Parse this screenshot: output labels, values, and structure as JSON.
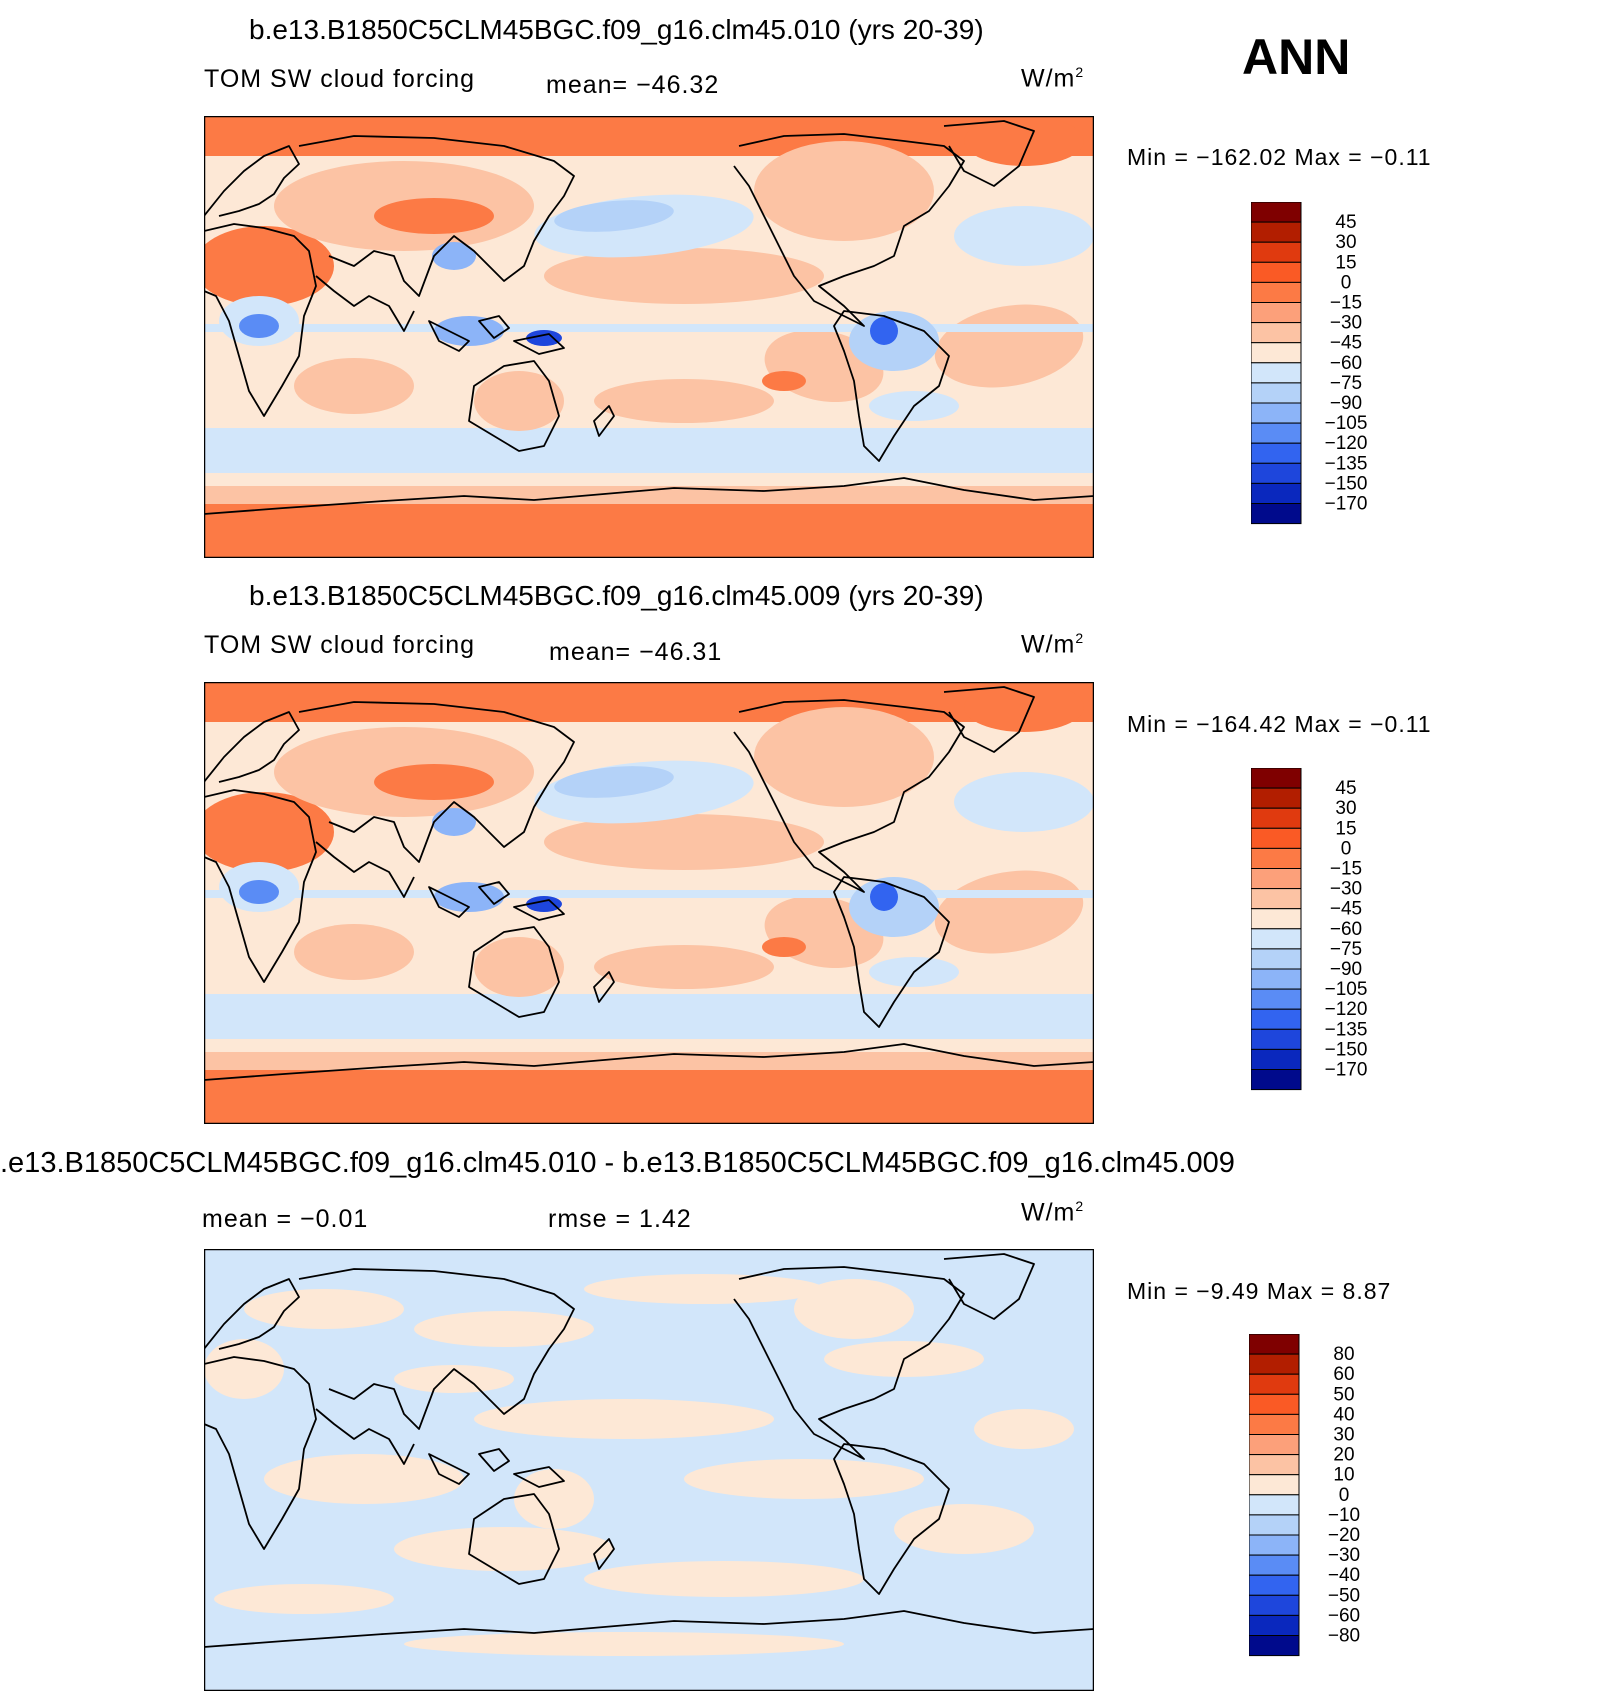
{
  "season": "ANN",
  "panels": [
    {
      "title": "b.e13.B1850C5CLM45BGC.f09_g16.clm45.010 (yrs 20-39)",
      "variable": "TOM SW cloud forcing",
      "stat": "mean= −46.32",
      "units": "W/m",
      "units_exp": "2",
      "minmax": "Min = −162.02 Max =  −0.11"
    },
    {
      "title": "b.e13.B1850C5CLM45BGC.f09_g16.clm45.009 (yrs 20-39)",
      "variable": "TOM SW cloud forcing",
      "stat": "mean= −46.31",
      "units": "W/m",
      "units_exp": "2",
      "minmax": "Min = −164.42 Max =  −0.11"
    },
    {
      "title": ".e13.B1850C5CLM45BGC.f09_g16.clm45.010 - b.e13.B1850C5CLM45BGC.f09_g16.clm45.009",
      "stat_mean": "mean =  −0.01",
      "stat_rmse": "rmse =   1.42",
      "units": "W/m",
      "units_exp": "2",
      "minmax": "Min =  −9.49 Max =   8.87"
    }
  ],
  "colors": {
    "scale": [
      "#7f0000",
      "#b21e00",
      "#e03a0f",
      "#fa5a25",
      "#fc7a45",
      "#fca07a",
      "#fcc3a4",
      "#fde8d6",
      "#d2e6fa",
      "#b4d2f8",
      "#8cb4f8",
      "#5a8cf5",
      "#3264f0",
      "#1e46dc",
      "#0a28be",
      "#000a8c"
    ],
    "ocean_warm": "#fcc3a4",
    "ocean_neutral": "#fde8d6",
    "ocean_cool": "#d2e6fa",
    "strong_warm": "#fc7a45"
  },
  "chart_data": [
    {
      "type": "heatmap",
      "title": "b.e13.B1850C5CLM45BGC.f09_g16.clm45.010 (yrs 20-39)",
      "subtitle": "TOM SW cloud forcing",
      "mean": -46.32,
      "min": -162.02,
      "max": -0.11,
      "units": "W/m2",
      "colorbar_labels": [
        "45",
        "30",
        "15",
        "0",
        "−15",
        "−30",
        "−45",
        "−60",
        "−75",
        "−90",
        "−105",
        "−120",
        "−135",
        "−150",
        "−170"
      ],
      "colorbar_levels": [
        45,
        30,
        15,
        0,
        -15,
        -30,
        -45,
        -60,
        -75,
        -90,
        -105,
        -120,
        -135,
        -150,
        -170
      ]
    },
    {
      "type": "heatmap",
      "title": "b.e13.B1850C5CLM45BGC.f09_g16.clm45.009 (yrs 20-39)",
      "subtitle": "TOM SW cloud forcing",
      "mean": -46.31,
      "min": -164.42,
      "max": -0.11,
      "units": "W/m2",
      "colorbar_labels": [
        "45",
        "30",
        "15",
        "0",
        "−15",
        "−30",
        "−45",
        "−60",
        "−75",
        "−90",
        "−105",
        "−120",
        "−135",
        "−150",
        "−170"
      ],
      "colorbar_levels": [
        45,
        30,
        15,
        0,
        -15,
        -30,
        -45,
        -60,
        -75,
        -90,
        -105,
        -120,
        -135,
        -150,
        -170
      ]
    },
    {
      "type": "heatmap",
      "title": ".e13.B1850C5CLM45BGC.f09_g16.clm45.010 - b.e13.B1850C5CLM45BGC.f09_g16.clm45.009",
      "mean": -0.01,
      "rmse": 1.42,
      "min": -9.49,
      "max": 8.87,
      "units": "W/m2",
      "colorbar_labels": [
        "80",
        "60",
        "50",
        "40",
        "30",
        "20",
        "10",
        "0",
        "−10",
        "−20",
        "−30",
        "−40",
        "−50",
        "−60",
        "−80"
      ],
      "colorbar_levels": [
        80,
        60,
        50,
        40,
        30,
        20,
        10,
        0,
        -10,
        -20,
        -30,
        -40,
        -50,
        -60,
        -80
      ]
    }
  ]
}
